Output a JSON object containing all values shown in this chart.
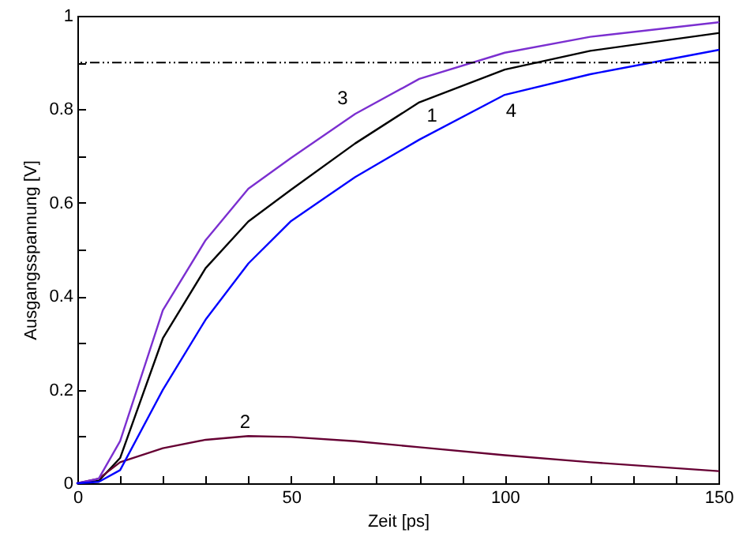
{
  "chart_data": {
    "type": "line",
    "xlabel": "Zeit [ps]",
    "ylabel": "Ausgangsspannung [V]",
    "x": [
      0,
      5,
      10,
      20,
      30,
      40,
      50,
      65,
      80,
      100,
      120,
      150
    ],
    "series": [
      {
        "name": "1",
        "color": "#000000",
        "values": [
          0,
          0.005,
          0.054,
          0.31,
          0.46,
          0.56,
          0.628,
          0.727,
          0.815,
          0.885,
          0.925,
          0.963
        ]
      },
      {
        "name": "2",
        "color": "#660033",
        "values": [
          0,
          0.01,
          0.045,
          0.075,
          0.093,
          0.101,
          0.099,
          0.09,
          0.077,
          0.06,
          0.045,
          0.026
        ]
      },
      {
        "name": "3",
        "color": "#7b2fd0",
        "values": [
          0,
          0.01,
          0.09,
          0.37,
          0.52,
          0.63,
          0.696,
          0.79,
          0.865,
          0.921,
          0.955,
          0.986
        ]
      },
      {
        "name": "4",
        "color": "#0000ff",
        "values": [
          0,
          0.003,
          0.028,
          0.2,
          0.35,
          0.47,
          0.561,
          0.655,
          0.735,
          0.831,
          0.875,
          0.927
        ]
      }
    ],
    "ref_lines": [
      {
        "axis": "y",
        "value": 0.9,
        "color": "#000000",
        "line_style": "dashed"
      }
    ],
    "xlim": [
      0,
      150
    ],
    "xticks": [
      0,
      {
        "value": 10,
        "label": null
      },
      {
        "value": 20,
        "label": null
      },
      {
        "value": 30,
        "label": null
      },
      {
        "value": 40,
        "label": null
      },
      50,
      {
        "value": 60,
        "label": null
      },
      {
        "value": 70,
        "label": null
      },
      {
        "value": 80,
        "label": null
      },
      {
        "value": 90,
        "label": null
      },
      100,
      {
        "value": 110,
        "label": null
      },
      {
        "value": 120,
        "label": null
      },
      {
        "value": 130,
        "label": null
      },
      {
        "value": 140,
        "label": null
      },
      150
    ],
    "ylim": [
      0,
      1
    ],
    "yticks": [
      0,
      {
        "value": 0.1,
        "label": null
      },
      0.2,
      {
        "value": 0.3,
        "label": null
      },
      0.4,
      {
        "value": 0.5,
        "label": null
      },
      0.6,
      {
        "value": 0.7,
        "label": null
      },
      0.8,
      {
        "value": 0.9,
        "label": null
      },
      1
    ],
    "grid": false,
    "line_style": "solid"
  }
}
